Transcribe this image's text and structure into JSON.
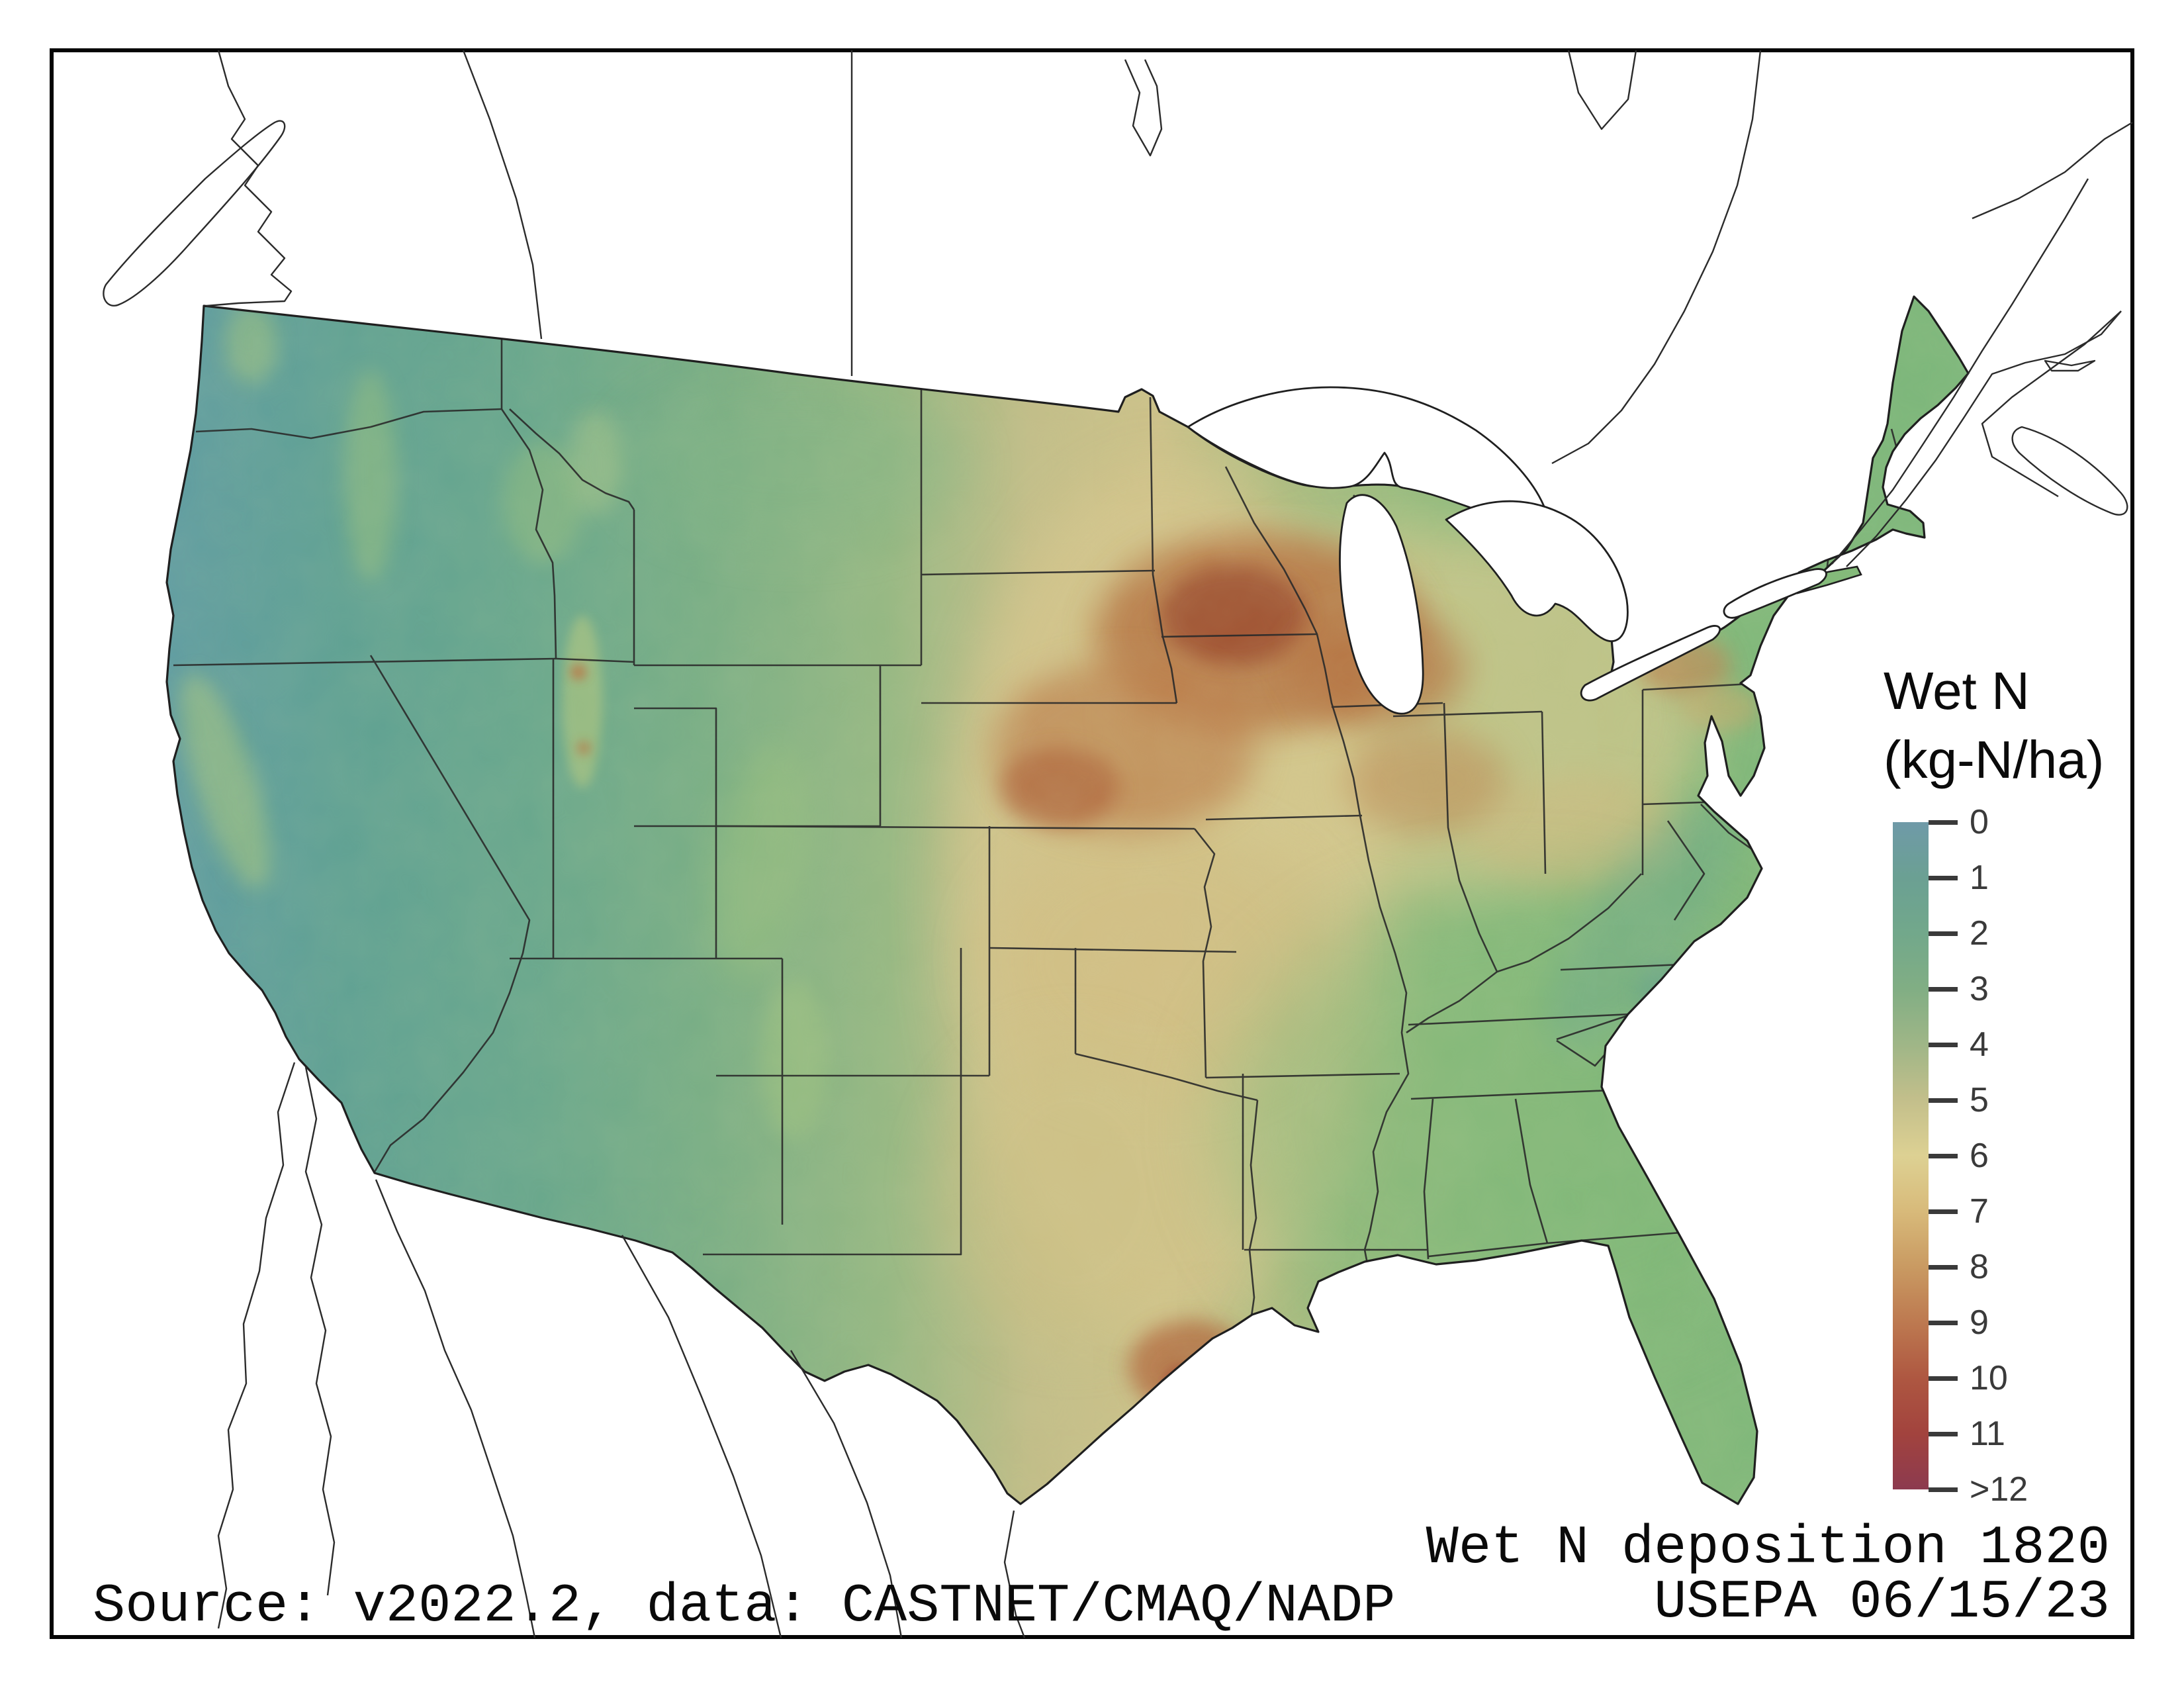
{
  "legend": {
    "title_line1": "Wet N",
    "title_line2": "(kg-N/ha)",
    "ticks": [
      "0",
      "1",
      "2",
      "3",
      "4",
      "5",
      "6",
      "7",
      "8",
      "9",
      "10",
      "11",
      ">12"
    ],
    "colorbar_stops": [
      "#6f9aa8",
      "#6ba093",
      "#72a88b",
      "#81ae84",
      "#9fb687",
      "#c3bf8b",
      "#ddd193",
      "#d8ba7a",
      "#c99a62",
      "#bd7950",
      "#ae5741",
      "#a2433e",
      "#8c3a4f"
    ]
  },
  "captions": {
    "map_caption": "Wet N deposition 1820",
    "agency_date": "USEPA 06/15/23",
    "source": "Source: v2022.2, data: CASTNET/CMAQ/NADP"
  },
  "map": {
    "frame_color": "#050505",
    "background": "#ffffff",
    "outline_color": "#1f1f1f",
    "water_color": "#ffffff",
    "tick_color": "#3a3a3a"
  }
}
